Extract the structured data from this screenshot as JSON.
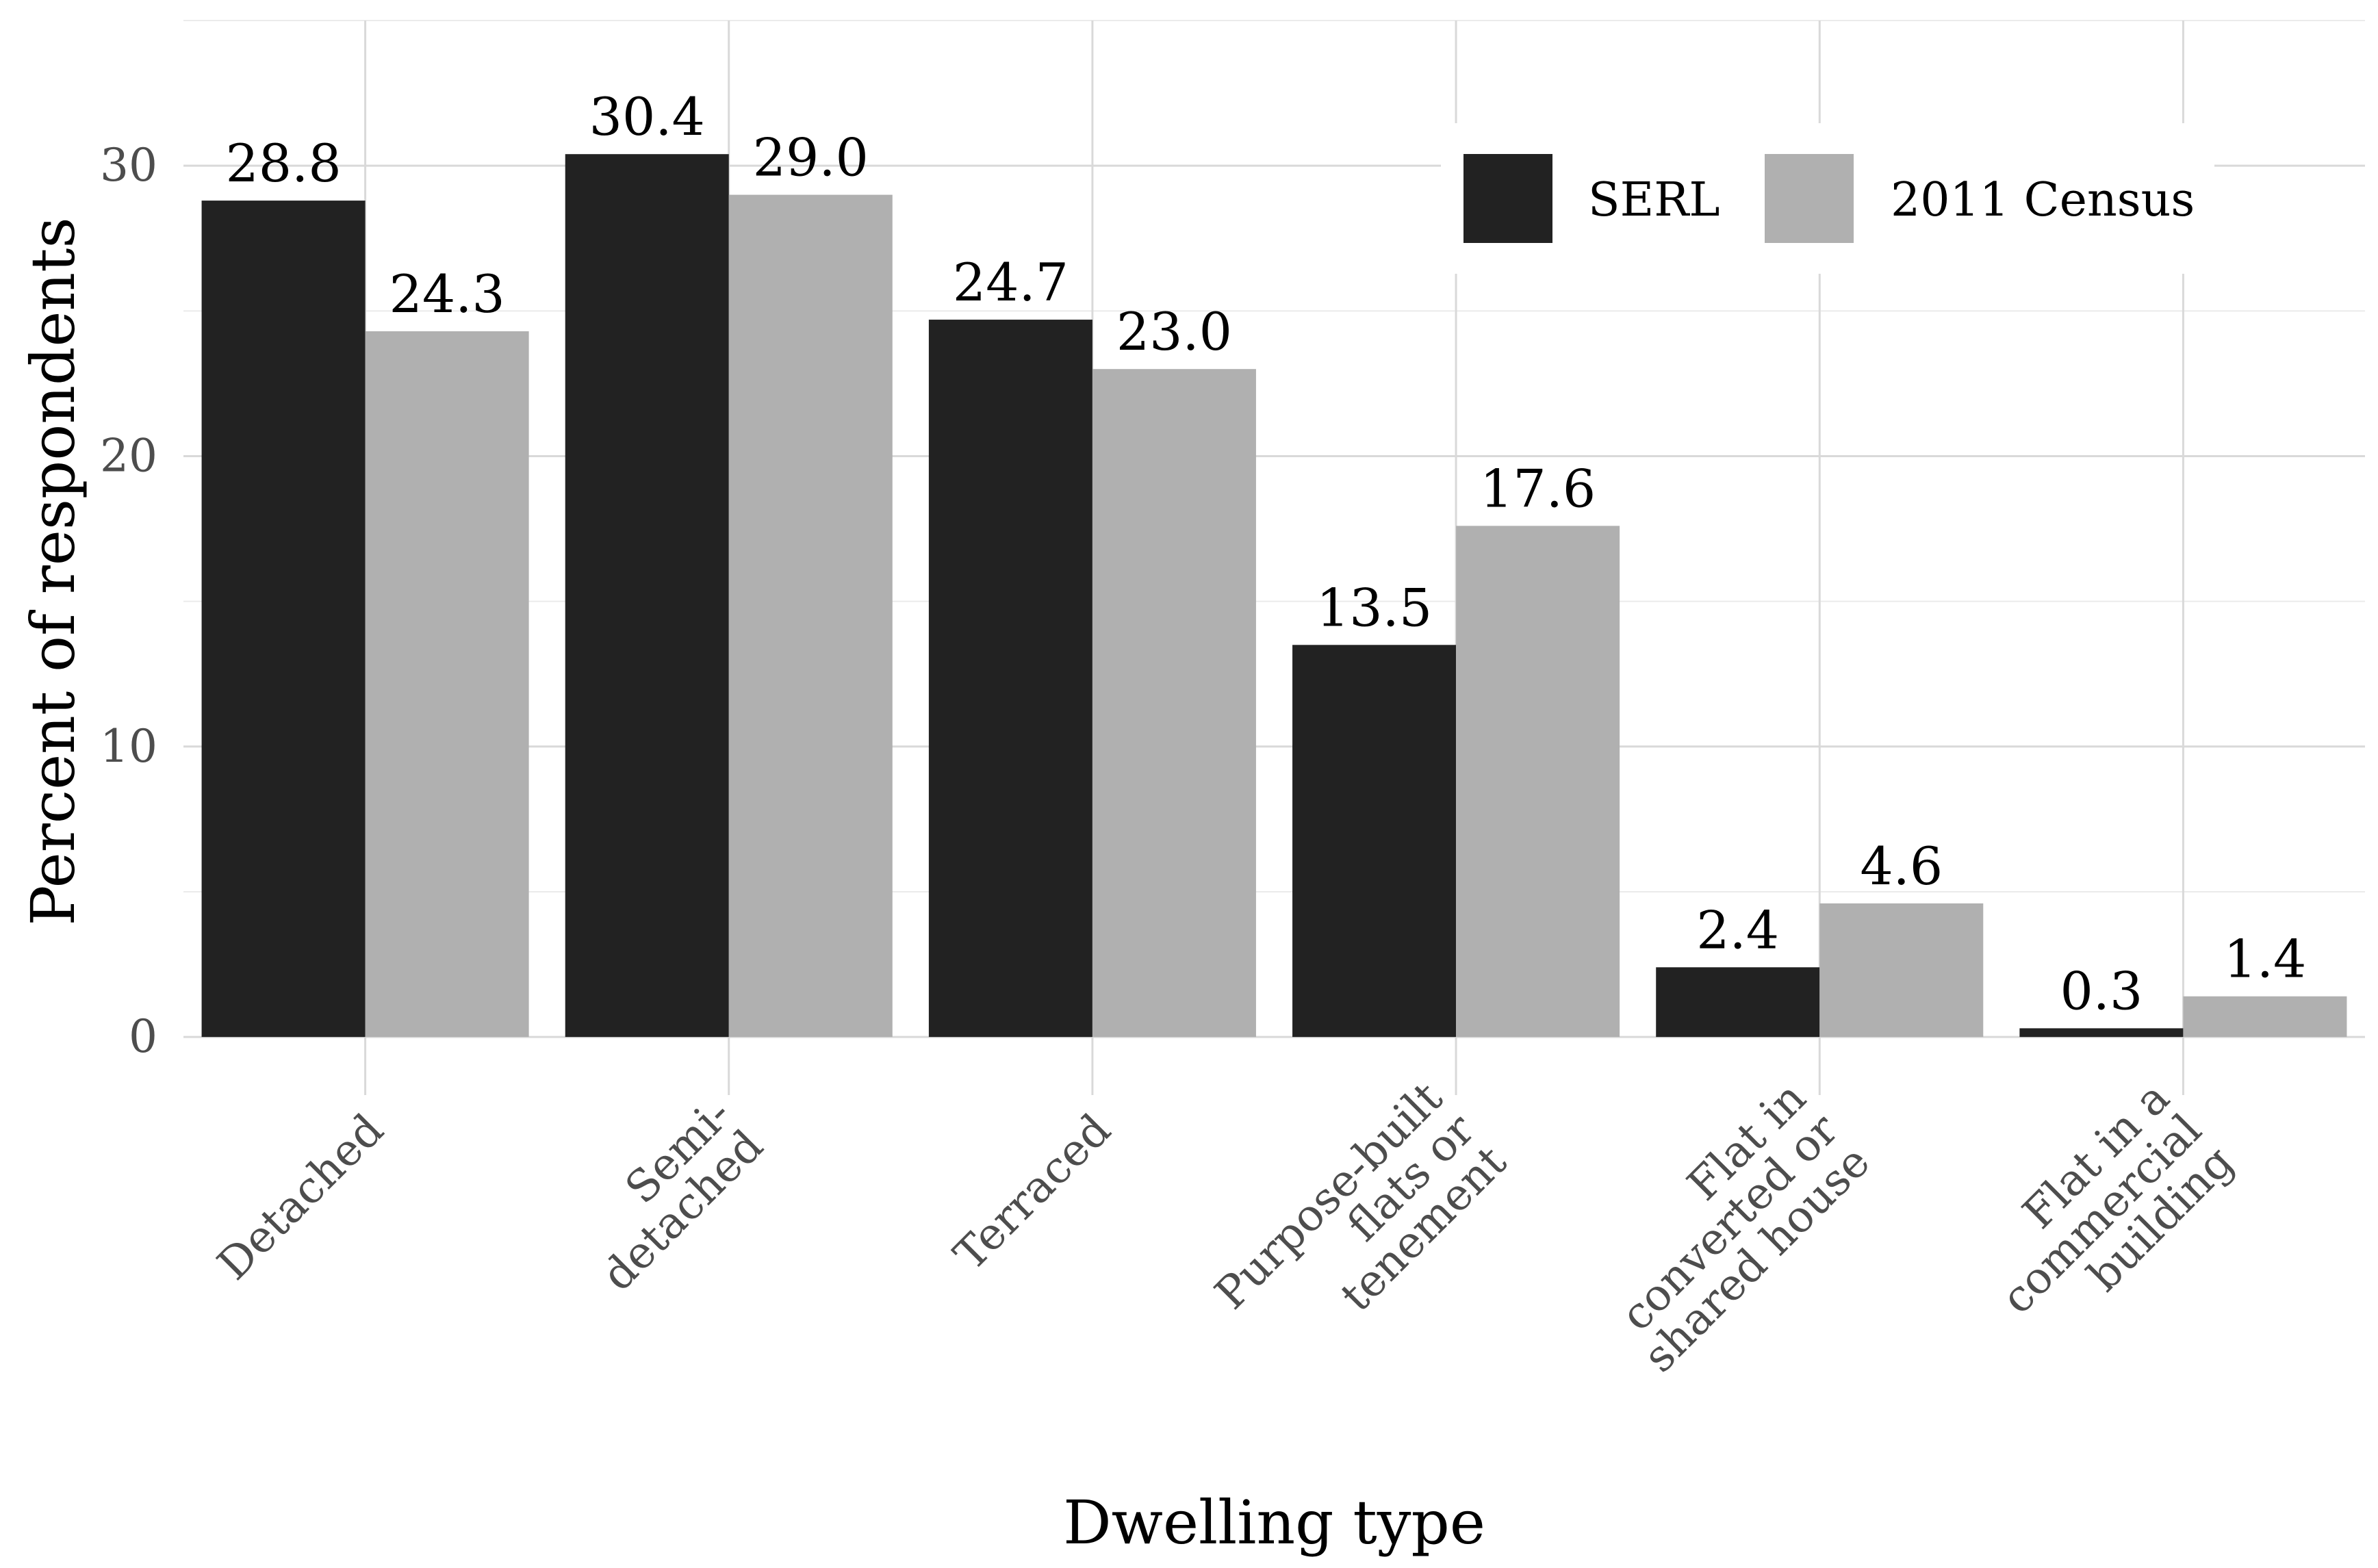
{
  "chart_data": {
    "type": "bar",
    "categories": [
      [
        "Detached"
      ],
      [
        "Semi-",
        "detached"
      ],
      [
        "Terraced"
      ],
      [
        "Purpose-built",
        "flats or",
        "tenement"
      ],
      [
        "Flat in",
        "converted or",
        "shared house"
      ],
      [
        "Flat in a",
        "commercial",
        "building"
      ]
    ],
    "series": [
      {
        "name": "SERL",
        "color": "#222222",
        "values": [
          28.8,
          30.4,
          24.7,
          13.5,
          2.4,
          0.3
        ],
        "labels": [
          "28.8",
          "30.4",
          "24.7",
          "13.5",
          "2.4",
          "0.3"
        ]
      },
      {
        "name": "2011 Census",
        "color": "#b0b0b0",
        "values": [
          24.3,
          29.0,
          23.0,
          17.6,
          4.6,
          1.4
        ],
        "labels": [
          "24.3",
          "29.0",
          "23.0",
          "17.6",
          "4.6",
          "1.4"
        ]
      }
    ],
    "xlabel": "Dwelling type",
    "ylabel": "Percent of respondents",
    "ylim": [
      -2,
      35
    ],
    "yticks": [
      0,
      10,
      20,
      30
    ],
    "grid": true,
    "legend_position": "top-right"
  }
}
